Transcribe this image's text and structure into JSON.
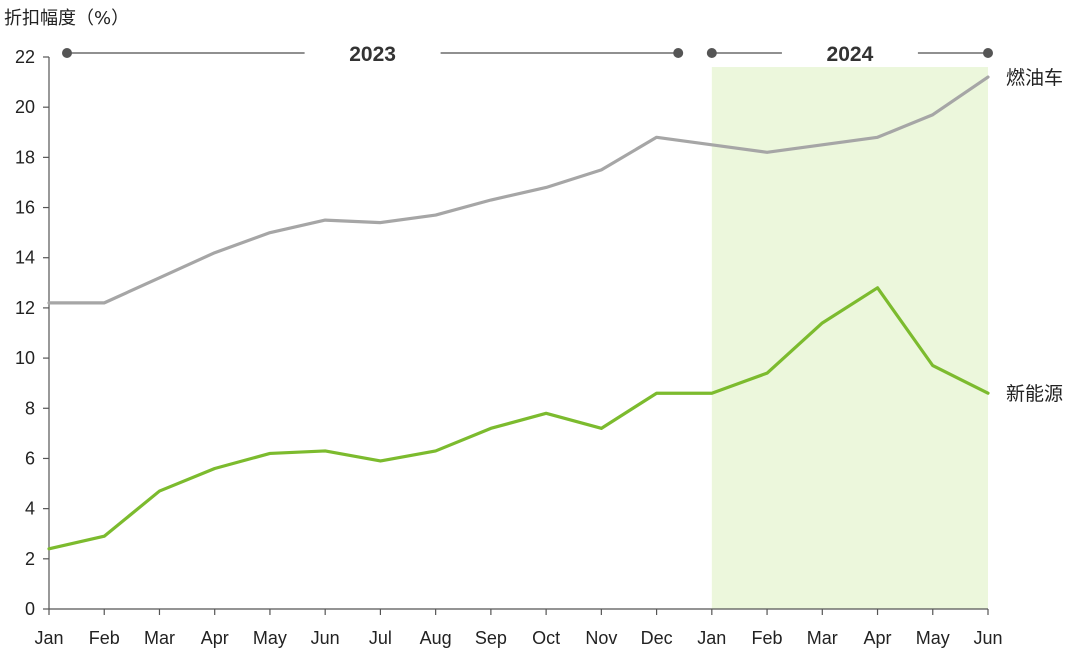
{
  "chart_data": {
    "type": "line",
    "ylabel": "折扣幅度（%）",
    "xlabel": "",
    "ylim": [
      0,
      22
    ],
    "yticks": [
      0,
      2,
      4,
      6,
      8,
      10,
      12,
      14,
      16,
      18,
      20,
      22
    ],
    "categories": [
      "Jan",
      "Feb",
      "Mar",
      "Apr",
      "May",
      "Jun",
      "Jul",
      "Aug",
      "Sep",
      "Oct",
      "Nov",
      "Dec",
      "Jan",
      "Feb",
      "Mar",
      "Apr",
      "May",
      "Jun"
    ],
    "year_groups": [
      {
        "label": "2023",
        "start_index": 0,
        "end_index": 11
      },
      {
        "label": "2024",
        "start_index": 12,
        "end_index": 17
      }
    ],
    "highlight_range": {
      "start_index": 12,
      "end_index": 17,
      "color": "#ecf7dc"
    },
    "series": [
      {
        "name": "燃油车",
        "color": "#a6a6a6",
        "values": [
          12.2,
          12.2,
          13.2,
          14.2,
          15.0,
          15.5,
          15.4,
          15.7,
          16.3,
          16.8,
          17.5,
          18.8,
          18.5,
          18.2,
          18.5,
          18.8,
          19.7,
          21.2
        ]
      },
      {
        "name": "新能源",
        "color": "#7cbb2e",
        "values": [
          2.4,
          2.9,
          4.7,
          5.6,
          6.2,
          6.3,
          5.9,
          6.3,
          7.2,
          7.8,
          7.2,
          8.6,
          8.6,
          9.4,
          11.4,
          12.8,
          9.7,
          8.6
        ]
      }
    ],
    "grid": false,
    "legend": "inline-right"
  }
}
